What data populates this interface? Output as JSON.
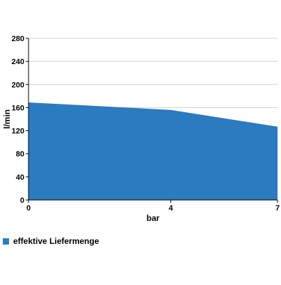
{
  "chart_data": {
    "type": "area",
    "x": [
      0,
      4,
      7
    ],
    "xticks": [
      "0",
      "4",
      "7"
    ],
    "xlabel": "bar",
    "ylabel": "l/min",
    "ylim": [
      0,
      280
    ],
    "yticks": [
      "0",
      "40",
      "80",
      "120",
      "160",
      "200",
      "240",
      "280"
    ],
    "grid": true,
    "legend_position": "bottom-left",
    "series": [
      {
        "name": "effektive Liefermenge",
        "values": [
          169,
          156,
          127
        ],
        "color": "#2b7bc0"
      }
    ]
  }
}
